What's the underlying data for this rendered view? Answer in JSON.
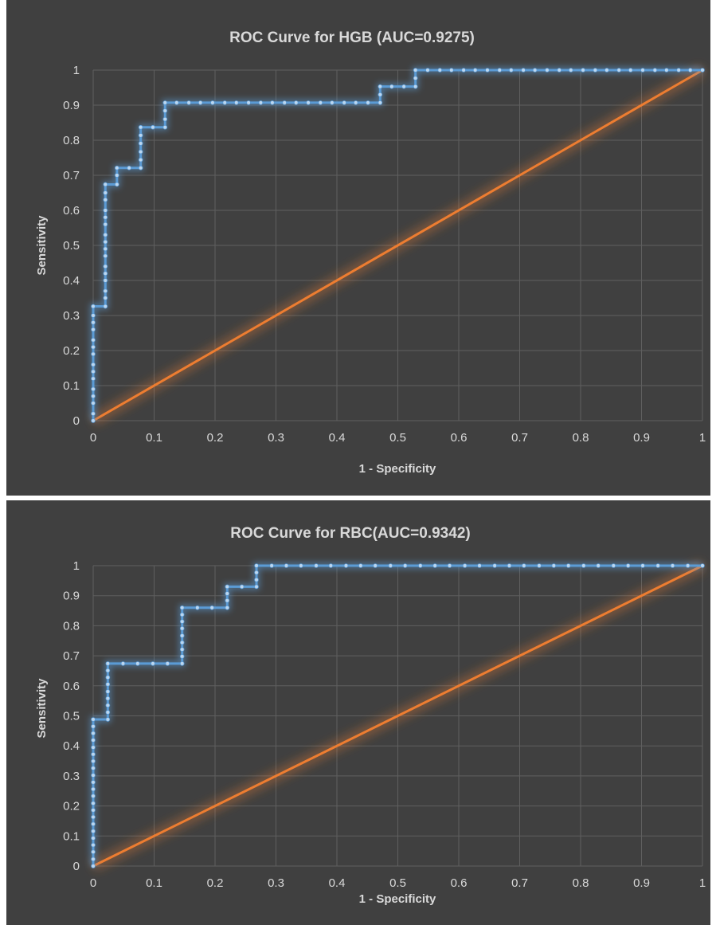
{
  "chart_data": [
    {
      "type": "line",
      "title": "ROC Curve for HGB (AUC=0.9275)",
      "xlabel": "1 - Specificity",
      "ylabel": "Sensitivity",
      "xlim": [
        0,
        1
      ],
      "ylim": [
        0,
        1
      ],
      "x_ticks": [
        "0",
        "0.1",
        "0.2",
        "0.3",
        "0.4",
        "0.5",
        "0.6",
        "0.7",
        "0.8",
        "0.9",
        "1"
      ],
      "y_ticks": [
        "0",
        "0.1",
        "0.2",
        "0.3",
        "0.4",
        "0.5",
        "0.6",
        "0.7",
        "0.8",
        "0.9",
        "1"
      ],
      "grid": true,
      "legend": "none",
      "colors": {
        "background": "#404040",
        "roc": "#5b9bd5",
        "reference": "#ed7d31",
        "text": "#d9d9d9",
        "grid": "#5f5f5f"
      },
      "series": [
        {
          "color": "#5b9bd5",
          "markers": true,
          "points": [
            [
              0,
              0
            ],
            [
              0,
              0.02
            ],
            [
              0,
              0.05
            ],
            [
              0,
              0.07
            ],
            [
              0,
              0.09
            ],
            [
              0,
              0.12
            ],
            [
              0,
              0.14
            ],
            [
              0,
              0.16
            ],
            [
              0,
              0.19
            ],
            [
              0,
              0.21
            ],
            [
              0,
              0.23
            ],
            [
              0,
              0.26
            ],
            [
              0,
              0.28
            ],
            [
              0,
              0.3
            ],
            [
              0,
              0.326
            ],
            [
              0.02,
              0.326
            ],
            [
              0.02,
              0.35
            ],
            [
              0.02,
              0.37
            ],
            [
              0.02,
              0.4
            ],
            [
              0.02,
              0.42
            ],
            [
              0.02,
              0.44
            ],
            [
              0.02,
              0.47
            ],
            [
              0.02,
              0.49
            ],
            [
              0.02,
              0.51
            ],
            [
              0.02,
              0.53
            ],
            [
              0.02,
              0.56
            ],
            [
              0.02,
              0.58
            ],
            [
              0.02,
              0.6
            ],
            [
              0.02,
              0.63
            ],
            [
              0.02,
              0.65
            ],
            [
              0.02,
              0.674
            ],
            [
              0.039,
              0.674
            ],
            [
              0.039,
              0.7
            ],
            [
              0.039,
              0.721
            ],
            [
              0.059,
              0.721
            ],
            [
              0.078,
              0.721
            ],
            [
              0.078,
              0.744
            ],
            [
              0.078,
              0.767
            ],
            [
              0.078,
              0.791
            ],
            [
              0.078,
              0.814
            ],
            [
              0.078,
              0.837
            ],
            [
              0.098,
              0.837
            ],
            [
              0.118,
              0.837
            ],
            [
              0.118,
              0.86
            ],
            [
              0.118,
              0.884
            ],
            [
              0.118,
              0.907
            ],
            [
              0.137,
              0.907
            ],
            [
              0.157,
              0.907
            ],
            [
              0.176,
              0.907
            ],
            [
              0.196,
              0.907
            ],
            [
              0.216,
              0.907
            ],
            [
              0.235,
              0.907
            ],
            [
              0.255,
              0.907
            ],
            [
              0.275,
              0.907
            ],
            [
              0.294,
              0.907
            ],
            [
              0.314,
              0.907
            ],
            [
              0.333,
              0.907
            ],
            [
              0.353,
              0.907
            ],
            [
              0.373,
              0.907
            ],
            [
              0.392,
              0.907
            ],
            [
              0.412,
              0.907
            ],
            [
              0.431,
              0.907
            ],
            [
              0.451,
              0.907
            ],
            [
              0.471,
              0.907
            ],
            [
              0.471,
              0.93
            ],
            [
              0.471,
              0.953
            ],
            [
              0.49,
              0.953
            ],
            [
              0.51,
              0.953
            ],
            [
              0.529,
              0.953
            ],
            [
              0.529,
              0.977
            ],
            [
              0.529,
              1
            ],
            [
              0.549,
              1
            ],
            [
              0.569,
              1
            ],
            [
              0.588,
              1
            ],
            [
              0.608,
              1
            ],
            [
              0.627,
              1
            ],
            [
              0.647,
              1
            ],
            [
              0.667,
              1
            ],
            [
              0.686,
              1
            ],
            [
              0.706,
              1
            ],
            [
              0.725,
              1
            ],
            [
              0.745,
              1
            ],
            [
              0.765,
              1
            ],
            [
              0.784,
              1
            ],
            [
              0.804,
              1
            ],
            [
              0.824,
              1
            ],
            [
              0.843,
              1
            ],
            [
              0.863,
              1
            ],
            [
              0.882,
              1
            ],
            [
              0.902,
              1
            ],
            [
              0.922,
              1
            ],
            [
              0.941,
              1
            ],
            [
              0.961,
              1
            ],
            [
              0.98,
              1
            ],
            [
              1,
              1
            ]
          ]
        },
        {
          "color": "#ed7d31",
          "markers": false,
          "points": [
            [
              0,
              0
            ],
            [
              1,
              1
            ]
          ]
        }
      ]
    },
    {
      "type": "line",
      "title": "ROC Curve for   RBC(AUC=0.9342)",
      "xlabel": "1 - Specificity",
      "ylabel": "Sensitivity",
      "xlim": [
        0,
        1
      ],
      "ylim": [
        0,
        1
      ],
      "x_ticks": [
        "0",
        "0.1",
        "0.2",
        "0.3",
        "0.4",
        "0.5",
        "0.6",
        "0.7",
        "0.8",
        "0.9",
        "1"
      ],
      "y_ticks": [
        "0",
        "0.1",
        "0.2",
        "0.3",
        "0.4",
        "0.5",
        "0.6",
        "0.7",
        "0.8",
        "0.9",
        "1"
      ],
      "grid": true,
      "legend": "none",
      "colors": {
        "background": "#404040",
        "roc": "#5b9bd5",
        "reference": "#ed7d31",
        "text": "#d9d9d9",
        "grid": "#5f5f5f"
      },
      "series": [
        {
          "color": "#5b9bd5",
          "markers": true,
          "points": [
            [
              0,
              0
            ],
            [
              0,
              0.023
            ],
            [
              0,
              0.047
            ],
            [
              0,
              0.07
            ],
            [
              0,
              0.093
            ],
            [
              0,
              0.116
            ],
            [
              0,
              0.14
            ],
            [
              0,
              0.163
            ],
            [
              0,
              0.186
            ],
            [
              0,
              0.209
            ],
            [
              0,
              0.233
            ],
            [
              0,
              0.256
            ],
            [
              0,
              0.279
            ],
            [
              0,
              0.302
            ],
            [
              0,
              0.326
            ],
            [
              0,
              0.349
            ],
            [
              0,
              0.372
            ],
            [
              0,
              0.395
            ],
            [
              0,
              0.419
            ],
            [
              0,
              0.442
            ],
            [
              0,
              0.465
            ],
            [
              0,
              0.488
            ],
            [
              0.024,
              0.488
            ],
            [
              0.024,
              0.512
            ],
            [
              0.024,
              0.535
            ],
            [
              0.024,
              0.558
            ],
            [
              0.024,
              0.581
            ],
            [
              0.024,
              0.605
            ],
            [
              0.024,
              0.628
            ],
            [
              0.024,
              0.651
            ],
            [
              0.024,
              0.674
            ],
            [
              0.049,
              0.674
            ],
            [
              0.073,
              0.674
            ],
            [
              0.098,
              0.674
            ],
            [
              0.122,
              0.674
            ],
            [
              0.146,
              0.674
            ],
            [
              0.146,
              0.698
            ],
            [
              0.146,
              0.721
            ],
            [
              0.146,
              0.744
            ],
            [
              0.146,
              0.767
            ],
            [
              0.146,
              0.791
            ],
            [
              0.146,
              0.814
            ],
            [
              0.146,
              0.837
            ],
            [
              0.146,
              0.86
            ],
            [
              0.171,
              0.86
            ],
            [
              0.195,
              0.86
            ],
            [
              0.22,
              0.86
            ],
            [
              0.22,
              0.884
            ],
            [
              0.22,
              0.907
            ],
            [
              0.22,
              0.93
            ],
            [
              0.244,
              0.93
            ],
            [
              0.268,
              0.93
            ],
            [
              0.268,
              0.953
            ],
            [
              0.268,
              0.977
            ],
            [
              0.268,
              1
            ],
            [
              0.293,
              1
            ],
            [
              0.317,
              1
            ],
            [
              0.341,
              1
            ],
            [
              0.366,
              1
            ],
            [
              0.39,
              1
            ],
            [
              0.415,
              1
            ],
            [
              0.439,
              1
            ],
            [
              0.463,
              1
            ],
            [
              0.488,
              1
            ],
            [
              0.512,
              1
            ],
            [
              0.537,
              1
            ],
            [
              0.561,
              1
            ],
            [
              0.585,
              1
            ],
            [
              0.61,
              1
            ],
            [
              0.634,
              1
            ],
            [
              0.659,
              1
            ],
            [
              0.683,
              1
            ],
            [
              0.707,
              1
            ],
            [
              0.732,
              1
            ],
            [
              0.756,
              1
            ],
            [
              0.78,
              1
            ],
            [
              0.805,
              1
            ],
            [
              0.829,
              1
            ],
            [
              0.854,
              1
            ],
            [
              0.878,
              1
            ],
            [
              0.902,
              1
            ],
            [
              0.927,
              1
            ],
            [
              0.951,
              1
            ],
            [
              0.976,
              1
            ],
            [
              1,
              1
            ]
          ]
        },
        {
          "color": "#ed7d31",
          "markers": false,
          "points": [
            [
              0,
              0
            ],
            [
              1,
              1
            ]
          ]
        }
      ]
    }
  ]
}
